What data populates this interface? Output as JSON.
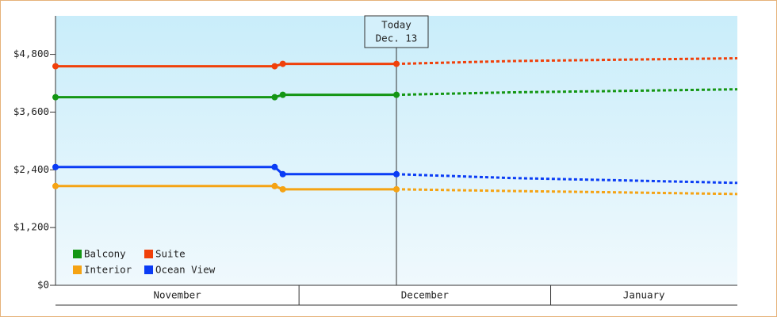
{
  "chart_data": {
    "type": "line",
    "x": [
      0,
      27,
      28,
      42,
      56,
      70,
      84
    ],
    "xlim": [
      0,
      84
    ],
    "months": [
      {
        "label": "November",
        "start": 0,
        "end": 30
      },
      {
        "label": "December",
        "start": 30,
        "end": 61
      },
      {
        "label": "January",
        "start": 61,
        "end": 84
      }
    ],
    "today": {
      "value": 42,
      "label": [
        "Today",
        "Dec. 13"
      ]
    },
    "series": [
      {
        "name": "Balcony",
        "color": "#149614",
        "values": [
          3909,
          3909,
          3959,
          3959,
          4010,
          4040,
          4074
        ]
      },
      {
        "name": "Suite",
        "color": "#f0400a",
        "values": [
          4553,
          4553,
          4602,
          4602,
          4660,
          4690,
          4718
        ]
      },
      {
        "name": "Interior",
        "color": "#f5a314",
        "values": [
          2062,
          2062,
          1996,
          1996,
          1960,
          1930,
          1897
        ]
      },
      {
        "name": "Ocean View",
        "color": "#0a3cf5",
        "values": [
          2458,
          2458,
          2309,
          2309,
          2230,
          2180,
          2128
        ]
      }
    ],
    "ylim": [
      0,
      5600
    ],
    "yticks": [
      {
        "value": 0,
        "label": "$0"
      },
      {
        "value": 1200,
        "label": "$1,200"
      },
      {
        "value": 2400,
        "label": "$2,400"
      },
      {
        "value": 3600,
        "label": "$3,600"
      },
      {
        "value": 4800,
        "label": "$4,800"
      }
    ],
    "legend": "bottom-left"
  }
}
